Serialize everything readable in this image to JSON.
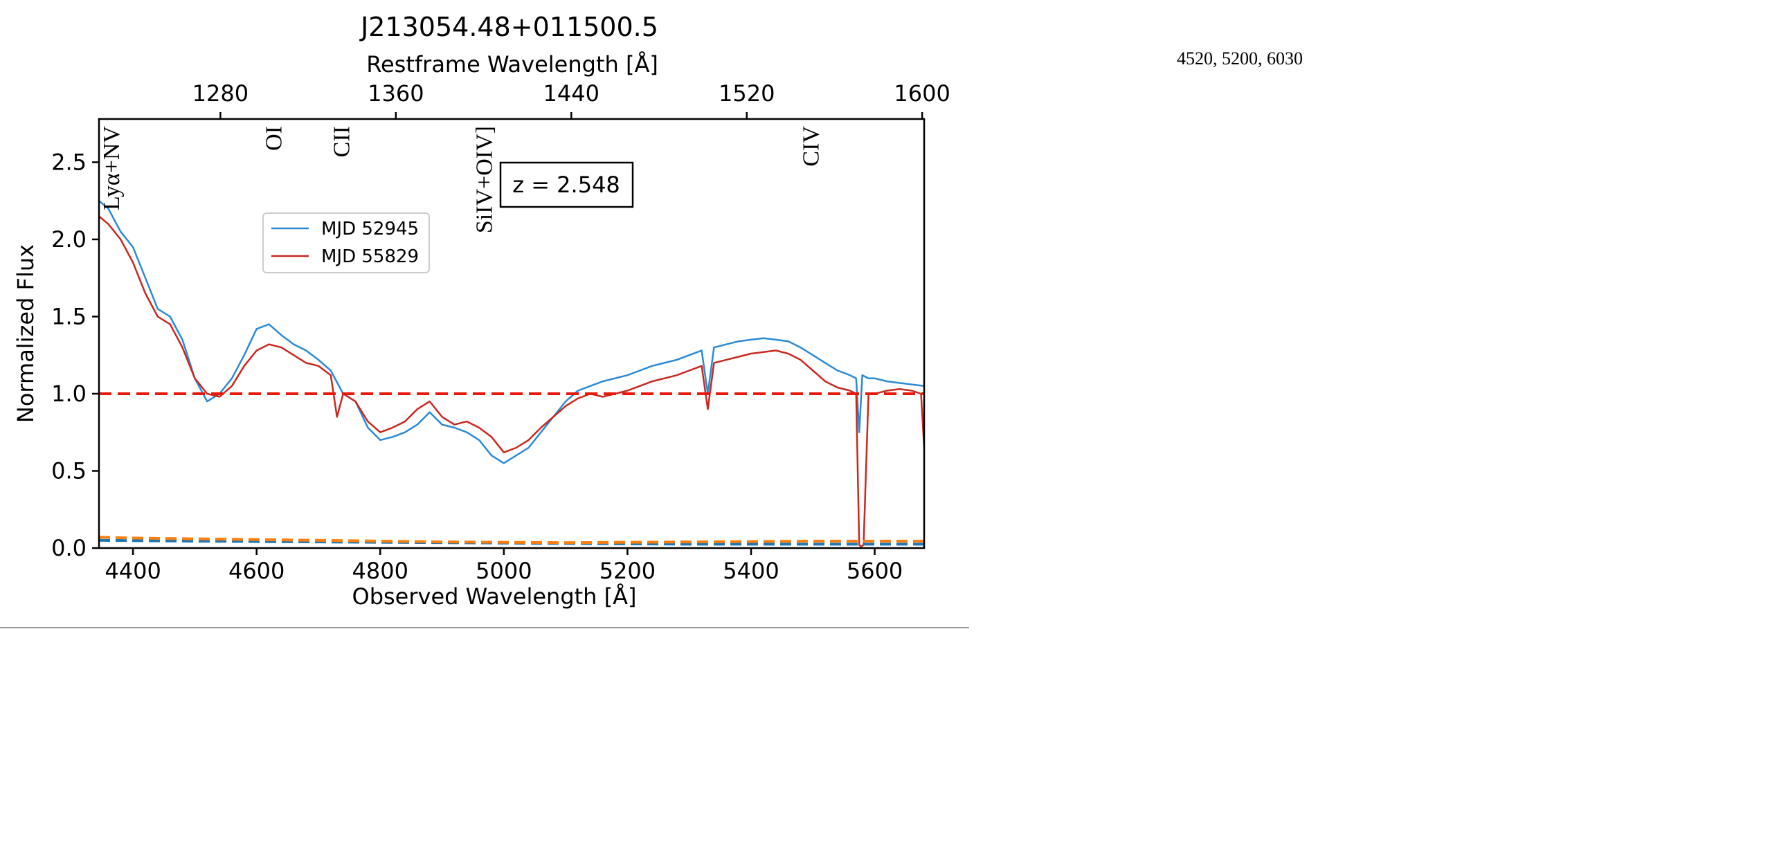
{
  "side_note": "4520, 5200, 6030",
  "chart_data": {
    "type": "line",
    "title": "J213054.48+011500.5",
    "xlabel": "Observed Wavelength [Å]",
    "top_xlabel": "Restframe Wavelength [Å]",
    "ylabel": "Normalized Flux",
    "xlim": [
      4345,
      5680
    ],
    "ylim": [
      0,
      2.78
    ],
    "redshift": 2.548,
    "redshift_label": "z = 2.548",
    "x_ticks": [
      4400,
      4600,
      4800,
      5000,
      5200,
      5400,
      5600
    ],
    "y_ticks": [
      "0.0",
      "0.5",
      "1.0",
      "1.5",
      "2.0",
      "2.5"
    ],
    "top_ticks": [
      1280,
      1360,
      1440,
      1520,
      1600
    ],
    "reference_line": {
      "y": 1.0,
      "color": "#e8180c",
      "style": "dashed"
    },
    "legend": {
      "placement": "upper-left"
    },
    "line_labels": [
      {
        "text": "Lyα+NV",
        "rest": 1230
      },
      {
        "text": "OI",
        "rest": 1304
      },
      {
        "text": "CII",
        "rest": 1335
      },
      {
        "text": "SiIV+OIV]",
        "rest": 1400
      },
      {
        "text": "CIV",
        "rest": 1549
      }
    ],
    "series": [
      {
        "name": "MJD 52945",
        "color": "#2a8ad6",
        "x": [
          4345,
          4360,
          4380,
          4400,
          4420,
          4440,
          4460,
          4480,
          4500,
          4520,
          4540,
          4560,
          4580,
          4600,
          4620,
          4640,
          4660,
          4680,
          4700,
          4720,
          4740,
          4760,
          4780,
          4800,
          4820,
          4840,
          4860,
          4880,
          4900,
          4920,
          4940,
          4960,
          4980,
          5000,
          5020,
          5040,
          5060,
          5080,
          5100,
          5120,
          5140,
          5160,
          5180,
          5200,
          5220,
          5240,
          5260,
          5280,
          5300,
          5320,
          5330,
          5340,
          5360,
          5380,
          5400,
          5420,
          5440,
          5460,
          5480,
          5500,
          5520,
          5540,
          5560,
          5570,
          5575,
          5580,
          5590,
          5600,
          5620,
          5640,
          5660,
          5680
        ],
        "y": [
          2.25,
          2.2,
          2.05,
          1.95,
          1.75,
          1.55,
          1.5,
          1.35,
          1.1,
          0.95,
          1.0,
          1.1,
          1.25,
          1.42,
          1.45,
          1.38,
          1.32,
          1.28,
          1.22,
          1.15,
          1.0,
          0.95,
          0.78,
          0.7,
          0.72,
          0.75,
          0.8,
          0.88,
          0.8,
          0.78,
          0.75,
          0.7,
          0.6,
          0.55,
          0.6,
          0.65,
          0.75,
          0.85,
          0.95,
          1.02,
          1.05,
          1.08,
          1.1,
          1.12,
          1.15,
          1.18,
          1.2,
          1.22,
          1.25,
          1.28,
          1.0,
          1.3,
          1.32,
          1.34,
          1.35,
          1.36,
          1.35,
          1.34,
          1.3,
          1.25,
          1.2,
          1.15,
          1.12,
          1.1,
          0.75,
          1.12,
          1.1,
          1.1,
          1.08,
          1.07,
          1.06,
          1.05
        ]
      },
      {
        "name": "MJD 55829",
        "color": "#c8281e",
        "x": [
          4345,
          4360,
          4380,
          4400,
          4420,
          4440,
          4460,
          4480,
          4500,
          4520,
          4540,
          4560,
          4580,
          4600,
          4620,
          4640,
          4660,
          4680,
          4700,
          4720,
          4730,
          4740,
          4760,
          4780,
          4800,
          4820,
          4840,
          4860,
          4880,
          4900,
          4920,
          4940,
          4960,
          4980,
          5000,
          5020,
          5040,
          5060,
          5080,
          5100,
          5120,
          5140,
          5160,
          5180,
          5200,
          5220,
          5240,
          5260,
          5280,
          5300,
          5320,
          5330,
          5340,
          5360,
          5380,
          5400,
          5420,
          5440,
          5460,
          5480,
          5500,
          5520,
          5540,
          5560,
          5570,
          5575,
          5578,
          5582,
          5590,
          5600,
          5620,
          5640,
          5660,
          5675,
          5680
        ],
        "y": [
          2.15,
          2.1,
          2.0,
          1.85,
          1.65,
          1.5,
          1.45,
          1.3,
          1.1,
          1.0,
          0.98,
          1.05,
          1.18,
          1.28,
          1.32,
          1.3,
          1.25,
          1.2,
          1.18,
          1.12,
          0.85,
          1.0,
          0.95,
          0.82,
          0.75,
          0.78,
          0.82,
          0.9,
          0.95,
          0.85,
          0.8,
          0.82,
          0.78,
          0.72,
          0.62,
          0.65,
          0.7,
          0.78,
          0.85,
          0.92,
          0.97,
          1.0,
          0.98,
          1.0,
          1.02,
          1.05,
          1.08,
          1.1,
          1.12,
          1.15,
          1.18,
          0.9,
          1.2,
          1.22,
          1.24,
          1.26,
          1.27,
          1.28,
          1.26,
          1.22,
          1.15,
          1.08,
          1.04,
          1.02,
          1.0,
          0.02,
          0.01,
          0.02,
          1.0,
          1.0,
          1.02,
          1.03,
          1.02,
          1.0,
          0.65
        ]
      },
      {
        "name": "",
        "color": "#1f77b4",
        "style": "dashed",
        "x": [
          4345,
          4500,
          4700,
          4900,
          5100,
          5300,
          5500,
          5680
        ],
        "y": [
          0.05,
          0.045,
          0.04,
          0.035,
          0.03,
          0.025,
          0.025,
          0.025
        ]
      },
      {
        "name": "",
        "color": "#ff7f0e",
        "style": "dashed",
        "x": [
          4345,
          4400,
          4500,
          4700,
          4900,
          5100,
          5300,
          5500,
          5600,
          5680
        ],
        "y": [
          0.07,
          0.065,
          0.06,
          0.05,
          0.04,
          0.035,
          0.04,
          0.045,
          0.045,
          0.045
        ]
      }
    ]
  }
}
